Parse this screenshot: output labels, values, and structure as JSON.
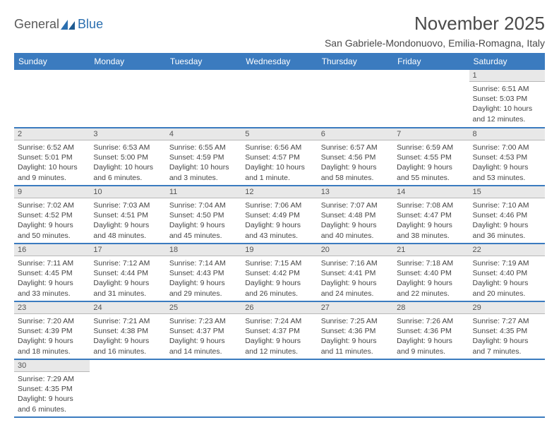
{
  "brand": {
    "part1": "General",
    "part2": "Blue"
  },
  "title": "November 2025",
  "location": "San Gabriele-Mondonuovo, Emilia-Romagna, Italy",
  "colors": {
    "header_bg": "#3b7bbf",
    "header_text": "#ffffff",
    "daynum_bg": "#e8e8e8",
    "row_border": "#3b7bbf",
    "body_text": "#444444",
    "brand_gray": "#5a5a5a",
    "brand_blue": "#2b6fb0",
    "page_bg": "#ffffff"
  },
  "typography": {
    "title_fontsize": 26,
    "location_fontsize": 14,
    "weekday_fontsize": 12,
    "daynum_fontsize": 11,
    "body_fontsize": 10.5
  },
  "weekdays": [
    "Sunday",
    "Monday",
    "Tuesday",
    "Wednesday",
    "Thursday",
    "Friday",
    "Saturday"
  ],
  "weeks": [
    [
      null,
      null,
      null,
      null,
      null,
      null,
      {
        "n": "1",
        "sunrise": "6:51 AM",
        "sunset": "5:03 PM",
        "daylight": "10 hours and 12 minutes."
      }
    ],
    [
      {
        "n": "2",
        "sunrise": "6:52 AM",
        "sunset": "5:01 PM",
        "daylight": "10 hours and 9 minutes."
      },
      {
        "n": "3",
        "sunrise": "6:53 AM",
        "sunset": "5:00 PM",
        "daylight": "10 hours and 6 minutes."
      },
      {
        "n": "4",
        "sunrise": "6:55 AM",
        "sunset": "4:59 PM",
        "daylight": "10 hours and 3 minutes."
      },
      {
        "n": "5",
        "sunrise": "6:56 AM",
        "sunset": "4:57 PM",
        "daylight": "10 hours and 1 minute."
      },
      {
        "n": "6",
        "sunrise": "6:57 AM",
        "sunset": "4:56 PM",
        "daylight": "9 hours and 58 minutes."
      },
      {
        "n": "7",
        "sunrise": "6:59 AM",
        "sunset": "4:55 PM",
        "daylight": "9 hours and 55 minutes."
      },
      {
        "n": "8",
        "sunrise": "7:00 AM",
        "sunset": "4:53 PM",
        "daylight": "9 hours and 53 minutes."
      }
    ],
    [
      {
        "n": "9",
        "sunrise": "7:02 AM",
        "sunset": "4:52 PM",
        "daylight": "9 hours and 50 minutes."
      },
      {
        "n": "10",
        "sunrise": "7:03 AM",
        "sunset": "4:51 PM",
        "daylight": "9 hours and 48 minutes."
      },
      {
        "n": "11",
        "sunrise": "7:04 AM",
        "sunset": "4:50 PM",
        "daylight": "9 hours and 45 minutes."
      },
      {
        "n": "12",
        "sunrise": "7:06 AM",
        "sunset": "4:49 PM",
        "daylight": "9 hours and 43 minutes."
      },
      {
        "n": "13",
        "sunrise": "7:07 AM",
        "sunset": "4:48 PM",
        "daylight": "9 hours and 40 minutes."
      },
      {
        "n": "14",
        "sunrise": "7:08 AM",
        "sunset": "4:47 PM",
        "daylight": "9 hours and 38 minutes."
      },
      {
        "n": "15",
        "sunrise": "7:10 AM",
        "sunset": "4:46 PM",
        "daylight": "9 hours and 36 minutes."
      }
    ],
    [
      {
        "n": "16",
        "sunrise": "7:11 AM",
        "sunset": "4:45 PM",
        "daylight": "9 hours and 33 minutes."
      },
      {
        "n": "17",
        "sunrise": "7:12 AM",
        "sunset": "4:44 PM",
        "daylight": "9 hours and 31 minutes."
      },
      {
        "n": "18",
        "sunrise": "7:14 AM",
        "sunset": "4:43 PM",
        "daylight": "9 hours and 29 minutes."
      },
      {
        "n": "19",
        "sunrise": "7:15 AM",
        "sunset": "4:42 PM",
        "daylight": "9 hours and 26 minutes."
      },
      {
        "n": "20",
        "sunrise": "7:16 AM",
        "sunset": "4:41 PM",
        "daylight": "9 hours and 24 minutes."
      },
      {
        "n": "21",
        "sunrise": "7:18 AM",
        "sunset": "4:40 PM",
        "daylight": "9 hours and 22 minutes."
      },
      {
        "n": "22",
        "sunrise": "7:19 AM",
        "sunset": "4:40 PM",
        "daylight": "9 hours and 20 minutes."
      }
    ],
    [
      {
        "n": "23",
        "sunrise": "7:20 AM",
        "sunset": "4:39 PM",
        "daylight": "9 hours and 18 minutes."
      },
      {
        "n": "24",
        "sunrise": "7:21 AM",
        "sunset": "4:38 PM",
        "daylight": "9 hours and 16 minutes."
      },
      {
        "n": "25",
        "sunrise": "7:23 AM",
        "sunset": "4:37 PM",
        "daylight": "9 hours and 14 minutes."
      },
      {
        "n": "26",
        "sunrise": "7:24 AM",
        "sunset": "4:37 PM",
        "daylight": "9 hours and 12 minutes."
      },
      {
        "n": "27",
        "sunrise": "7:25 AM",
        "sunset": "4:36 PM",
        "daylight": "9 hours and 11 minutes."
      },
      {
        "n": "28",
        "sunrise": "7:26 AM",
        "sunset": "4:36 PM",
        "daylight": "9 hours and 9 minutes."
      },
      {
        "n": "29",
        "sunrise": "7:27 AM",
        "sunset": "4:35 PM",
        "daylight": "9 hours and 7 minutes."
      }
    ],
    [
      {
        "n": "30",
        "sunrise": "7:29 AM",
        "sunset": "4:35 PM",
        "daylight": "9 hours and 6 minutes."
      },
      null,
      null,
      null,
      null,
      null,
      null
    ]
  ],
  "labels": {
    "sunrise": "Sunrise:",
    "sunset": "Sunset:",
    "daylight": "Daylight:"
  }
}
